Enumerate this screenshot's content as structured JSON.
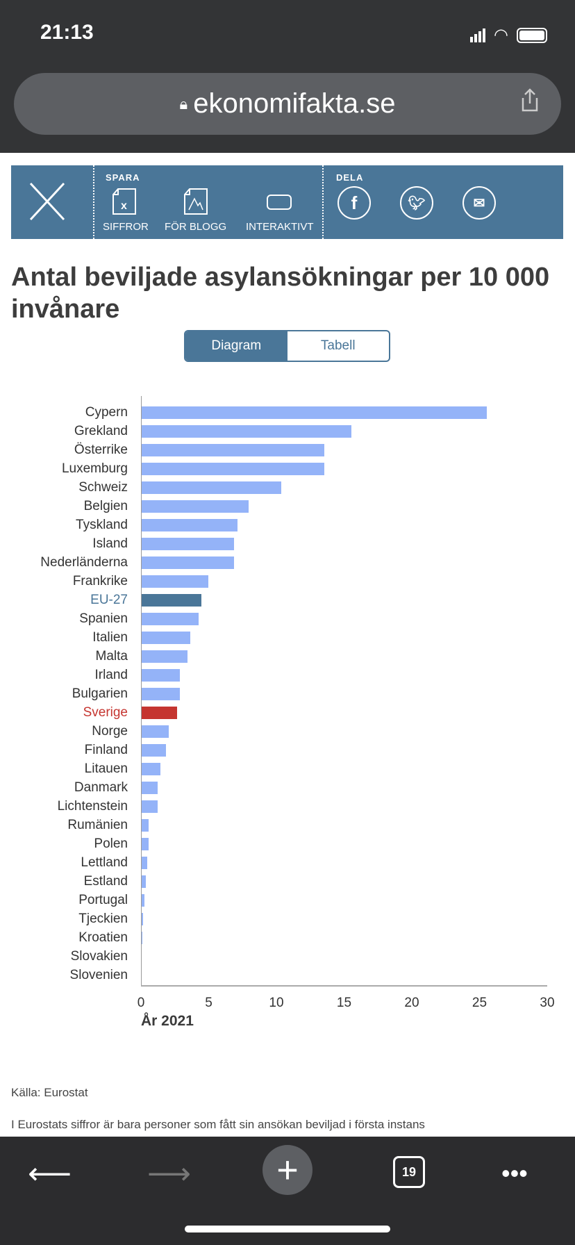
{
  "status": {
    "time": "21:13"
  },
  "browser": {
    "url": "ekonomifakta.se",
    "tabs_count": "19"
  },
  "toolbar": {
    "spara": "SPARA",
    "dela": "DELA",
    "siffror": "SIFFROR",
    "for_blogg": "FÖR BLOGG",
    "interaktivt": "INTERAKTIVT"
  },
  "title": "Antal beviljade asylansökningar per 10 000 invånare",
  "toggle": {
    "diagram": "Diagram",
    "tabell": "Tabell"
  },
  "source": "Källa: Eurostat",
  "footnote": "I Eurostats siffror är bara personer som fått sin ansökan beviljad i första instans",
  "colors": {
    "default": "#94b3f8",
    "eu": "#4a7698",
    "sverige": "#c53530"
  },
  "chart_data": {
    "type": "bar",
    "orientation": "horizontal",
    "xlabel": "År 2021",
    "xlim": [
      0,
      30
    ],
    "xticks": [
      0,
      5,
      10,
      15,
      20,
      25,
      30
    ],
    "categories": [
      "Cypern",
      "Grekland",
      "Österrike",
      "Luxemburg",
      "Schweiz",
      "Belgien",
      "Tyskland",
      "Island",
      "Nederländerna",
      "Frankrike",
      "EU-27",
      "Spanien",
      "Italien",
      "Malta",
      "Irland",
      "Bulgarien",
      "Sverige",
      "Norge",
      "Finland",
      "Litauen",
      "Danmark",
      "Lichtenstein",
      "Rumänien",
      "Polen",
      "Lettland",
      "Estland",
      "Portugal",
      "Tjeckien",
      "Kroatien",
      "Slovakien",
      "Slovenien"
    ],
    "values": [
      25.5,
      15.5,
      13.5,
      13.5,
      10.3,
      7.9,
      7.1,
      6.8,
      6.8,
      4.9,
      4.4,
      4.2,
      3.6,
      3.4,
      2.8,
      2.8,
      2.6,
      2.0,
      1.8,
      1.4,
      1.2,
      1.2,
      0.5,
      0.5,
      0.4,
      0.3,
      0.2,
      0.1,
      0.05,
      0,
      0
    ]
  }
}
